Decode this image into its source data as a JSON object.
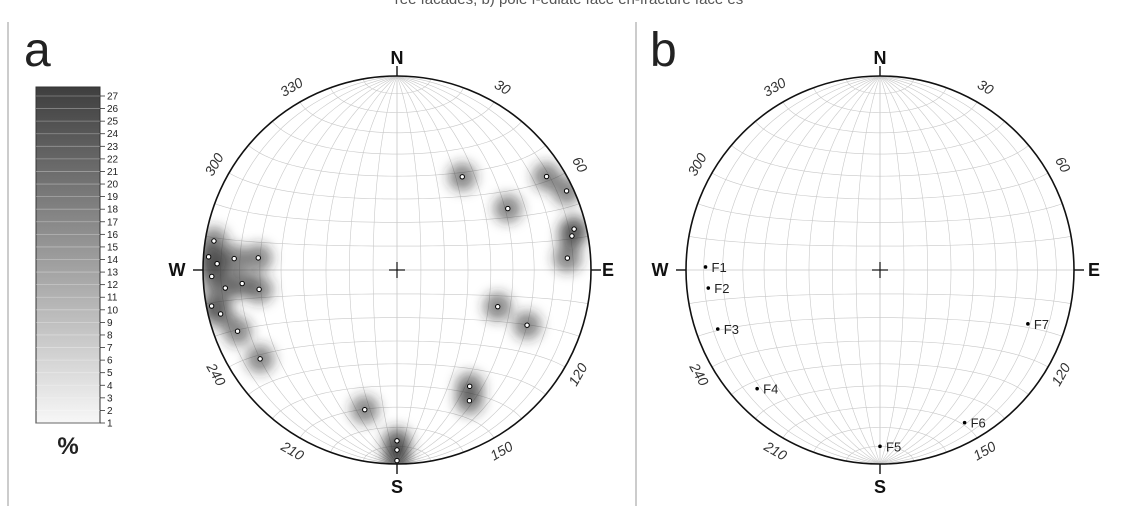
{
  "caption": "ree facades; b) pole f-ediate face en-fracture  face es",
  "panel_a": {
    "letter": "a",
    "north": "N",
    "south": "S",
    "east": "E",
    "west": "W",
    "azimuths": [
      {
        "deg": 30,
        "label": "30"
      },
      {
        "deg": 60,
        "label": "60"
      },
      {
        "deg": 120,
        "label": "120"
      },
      {
        "deg": 150,
        "label": "150"
      },
      {
        "deg": 210,
        "label": "210"
      },
      {
        "deg": 240,
        "label": "240"
      },
      {
        "deg": 300,
        "label": "300"
      },
      {
        "deg": 330,
        "label": "330"
      }
    ],
    "legend": {
      "unit": "%",
      "levels": [
        "27",
        "26",
        "25",
        "24",
        "23",
        "22",
        "21",
        "20",
        "19",
        "18",
        "17",
        "16",
        "15",
        "14",
        "13",
        "12",
        "11",
        "10",
        "9",
        "8",
        "7",
        "6",
        "5",
        "4",
        "3",
        "2",
        "1"
      ],
      "color_top": "#3e3e3e",
      "color_bottom": "#f7f7f7"
    },
    "poles": [
      {
        "az": 35,
        "pl": 41
      },
      {
        "az": 58,
        "pl": 10
      },
      {
        "az": 61,
        "pl": 35
      },
      {
        "az": 65,
        "pl": 4
      },
      {
        "az": 77,
        "pl": 7
      },
      {
        "az": 79,
        "pl": 9
      },
      {
        "az": 86,
        "pl": 13
      },
      {
        "az": 110,
        "pl": 44
      },
      {
        "az": 113,
        "pl": 28
      },
      {
        "az": 148,
        "pl": 30
      },
      {
        "az": 151,
        "pl": 24
      },
      {
        "az": 180,
        "pl": 2
      },
      {
        "az": 180,
        "pl": 8
      },
      {
        "az": 180,
        "pl": 13
      },
      {
        "az": 193,
        "pl": 27
      },
      {
        "az": 237,
        "pl": 17
      },
      {
        "az": 249,
        "pl": 13
      },
      {
        "az": 256,
        "pl": 7
      },
      {
        "az": 259,
        "pl": 3
      },
      {
        "az": 262,
        "pl": 29
      },
      {
        "az": 264,
        "pl": 12
      },
      {
        "az": 265,
        "pl": 21
      },
      {
        "az": 268,
        "pl": 5
      },
      {
        "az": 272,
        "pl": 8
      },
      {
        "az": 274,
        "pl": 3
      },
      {
        "az": 274,
        "pl": 17
      },
      {
        "az": 275,
        "pl": 29
      },
      {
        "az": 279,
        "pl": 5
      }
    ]
  },
  "panel_b": {
    "letter": "b",
    "north": "N",
    "south": "S",
    "east": "E",
    "west": "W",
    "azimuths": [
      {
        "deg": 30,
        "label": "30"
      },
      {
        "deg": 60,
        "label": "60"
      },
      {
        "deg": 120,
        "label": "120"
      },
      {
        "deg": 150,
        "label": "150"
      },
      {
        "deg": 210,
        "label": "210"
      },
      {
        "deg": 240,
        "label": "240"
      },
      {
        "deg": 300,
        "label": "300"
      },
      {
        "deg": 330,
        "label": "330"
      }
    ],
    "poles": [
      {
        "name": "F1",
        "az": 271,
        "pl": 11
      },
      {
        "name": "F2",
        "az": 264,
        "pl": 12
      },
      {
        "name": "F3",
        "az": 250,
        "pl": 12
      },
      {
        "name": "F4",
        "az": 226,
        "pl": 13
      },
      {
        "name": "F5",
        "az": 180,
        "pl": 10
      },
      {
        "name": "F6",
        "az": 151,
        "pl": 11
      },
      {
        "name": "F7",
        "az": 110,
        "pl": 20
      }
    ]
  }
}
